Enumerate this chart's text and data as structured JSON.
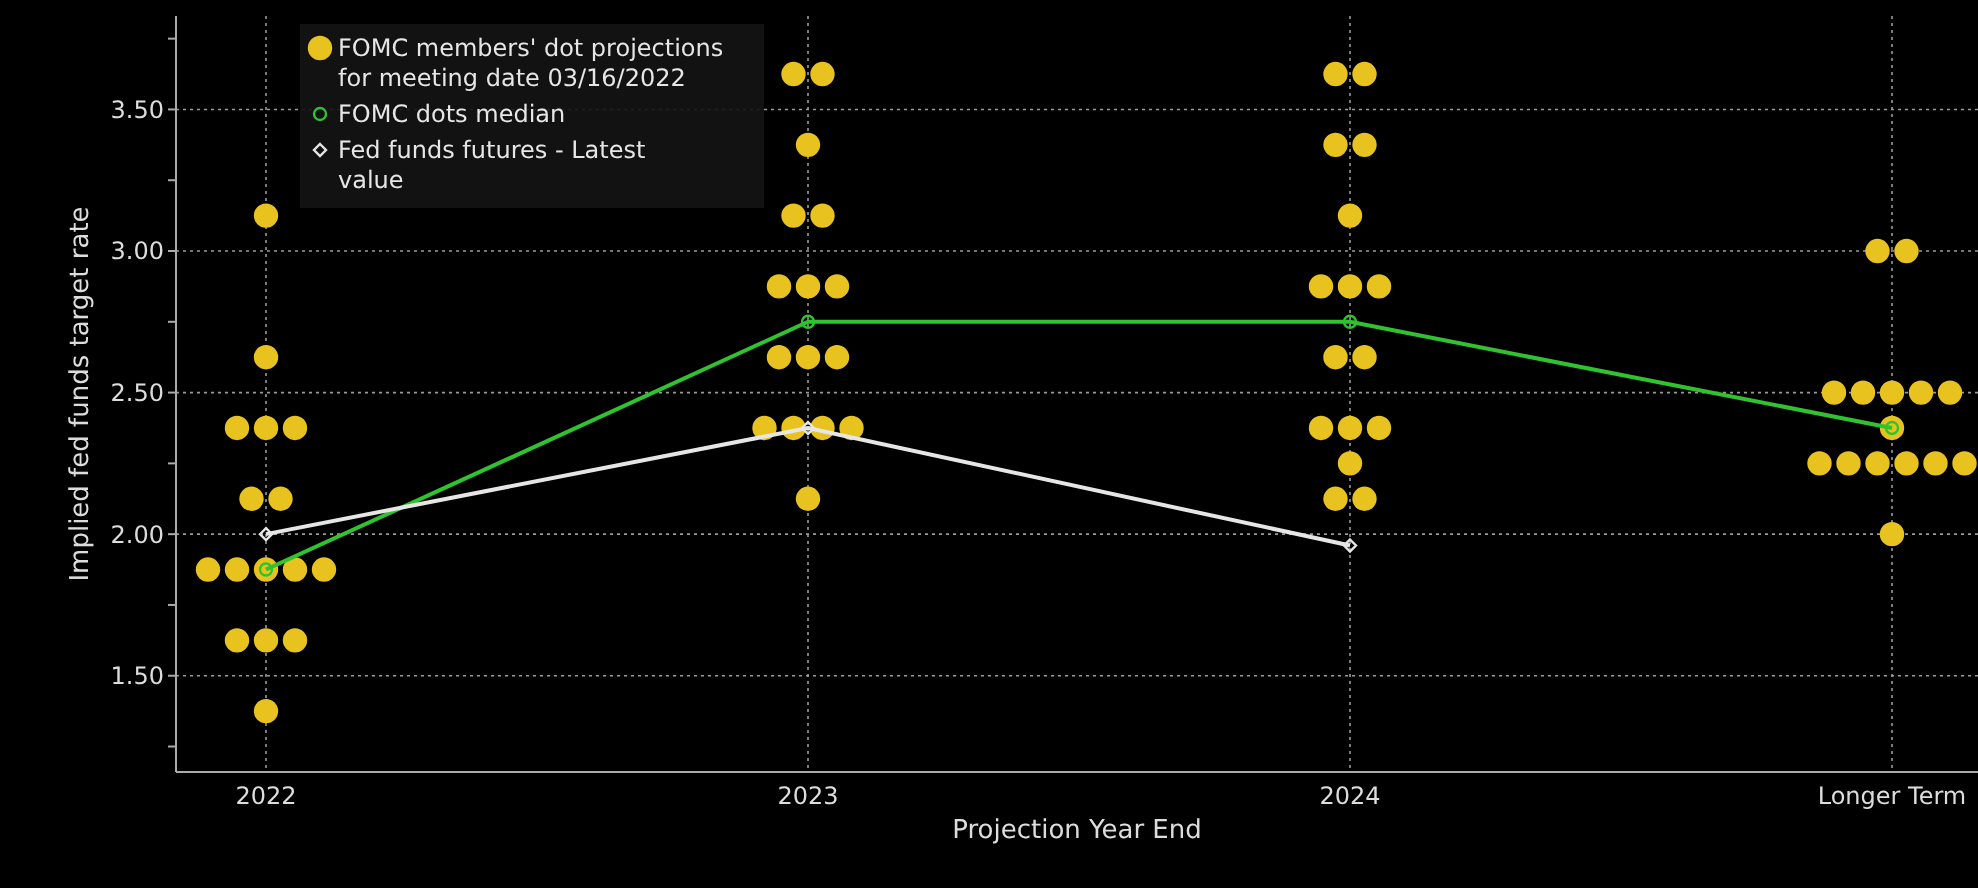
{
  "chart_data": {
    "type": "scatter",
    "xlabel": "Projection Year End",
    "ylabel": "Implied fed funds target rate",
    "categories": [
      "2022",
      "2023",
      "2024",
      "Longer Term"
    ],
    "ylim": [
      1.16,
      3.83
    ],
    "yticks": [
      {
        "value": 1.25,
        "label": null
      },
      {
        "value": 1.5,
        "label": "1.50"
      },
      {
        "value": 1.75,
        "label": null
      },
      {
        "value": 2,
        "label": "2.00"
      },
      {
        "value": 2.25,
        "label": null
      },
      {
        "value": 2.5,
        "label": "2.50"
      },
      {
        "value": 2.75,
        "label": null
      },
      {
        "value": 3,
        "label": "3.00"
      },
      {
        "value": 3.25,
        "label": null
      },
      {
        "value": 3.5,
        "label": "3.50"
      },
      {
        "value": 3.75,
        "label": null
      }
    ],
    "grid": true,
    "legend": "top left",
    "series": [
      {
        "name": "FOMC members' dot projections for meeting date 03/16/2022",
        "color": "#e8c21e",
        "marker": "circle",
        "values": [
          3.125,
          3.625,
          3.625,
          3
        ]
      },
      {
        "color": "#e8c21e",
        "marker": "circle",
        "values": [
          2.625,
          3.625,
          3.625,
          3
        ]
      },
      {
        "color": "#e8c21e",
        "marker": "circle",
        "values": [
          2.375,
          3.375,
          3.375,
          2.5
        ]
      },
      {
        "color": "#e8c21e",
        "marker": "circle",
        "values": [
          2.375,
          3.125,
          3.375,
          2.5
        ]
      },
      {
        "color": "#e8c21e",
        "marker": "circle",
        "values": [
          2.375,
          3.125,
          3.125,
          2.5
        ]
      },
      {
        "color": "#e8c21e",
        "marker": "circle",
        "values": [
          2.125,
          2.875,
          2.875,
          2.5
        ]
      },
      {
        "color": "#e8c21e",
        "marker": "circle",
        "values": [
          2.125,
          2.875,
          2.875,
          2.5
        ]
      },
      {
        "color": "#e8c21e",
        "marker": "circle",
        "values": [
          1.875,
          2.875,
          2.875,
          2.375
        ]
      },
      {
        "color": "#e8c21e",
        "marker": "circle",
        "values": [
          1.875,
          2.625,
          2.625,
          2.25
        ]
      },
      {
        "color": "#e8c21e",
        "marker": "circle",
        "values": [
          1.875,
          2.625,
          2.625,
          2.25
        ]
      },
      {
        "color": "#e8c21e",
        "marker": "circle",
        "values": [
          1.875,
          2.625,
          2.375,
          2.25
        ]
      },
      {
        "color": "#e8c21e",
        "marker": "circle",
        "values": [
          1.875,
          2.375,
          2.375,
          2.25
        ]
      },
      {
        "color": "#e8c21e",
        "marker": "circle",
        "values": [
          1.625,
          2.375,
          2.375,
          2.25
        ]
      },
      {
        "color": "#e8c21e",
        "marker": "circle",
        "values": [
          1.625,
          2.375,
          2.25,
          2.25
        ]
      },
      {
        "color": "#e8c21e",
        "marker": "circle",
        "values": [
          1.625,
          2.375,
          2.125,
          2
        ]
      },
      {
        "color": "#e8c21e",
        "marker": "circle",
        "values": [
          1.375,
          2.125,
          2.125,
          null
        ]
      },
      {
        "name": "FOMC dots median",
        "type": "line",
        "color": "#2fc42f",
        "marker": "circle",
        "values": [
          1.875,
          2.75,
          2.75,
          2.375
        ]
      },
      {
        "name": "Fed funds futures - Latest value",
        "type": "line",
        "color": "#e6e6e6",
        "marker": "diamond",
        "values": [
          2,
          2.375,
          1.96,
          null
        ]
      }
    ]
  }
}
